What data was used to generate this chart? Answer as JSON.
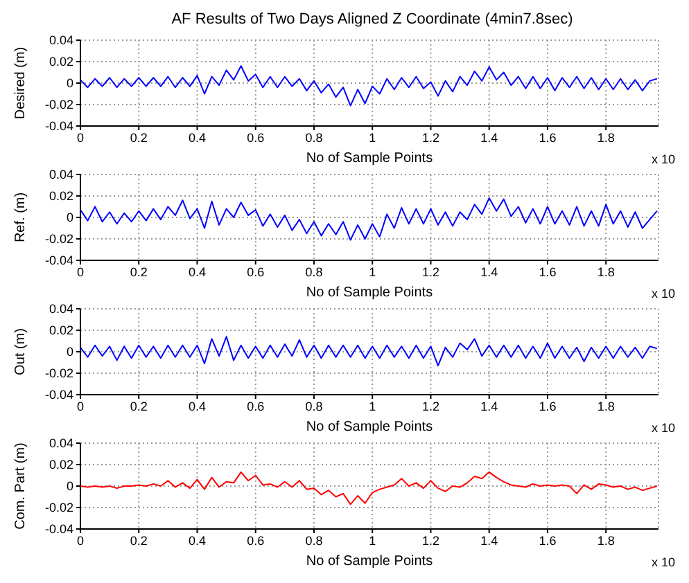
{
  "chart_data": [
    {
      "type": "line",
      "title": "AF Results of Two Days Aligned Z Coordinate (4min7.8sec)",
      "xlabel": "No of Sample Points",
      "ylabel": "Desired (m)",
      "annotations": [
        "x 10"
      ],
      "grid": true,
      "xlim": [
        0,
        1.98
      ],
      "xticks": [
        0,
        0.2,
        0.4,
        0.6,
        0.8,
        1,
        1.2,
        1.4,
        1.6,
        1.8
      ],
      "ylim": [
        -0.04,
        0.04
      ],
      "yticks": [
        -0.04,
        -0.02,
        0,
        0.02,
        0.04
      ],
      "x": [
        0,
        0.025,
        0.05,
        0.075,
        0.1,
        0.125,
        0.15,
        0.175,
        0.2,
        0.225,
        0.25,
        0.275,
        0.3,
        0.325,
        0.35,
        0.375,
        0.4,
        0.425,
        0.45,
        0.475,
        0.5,
        0.525,
        0.55,
        0.575,
        0.6,
        0.625,
        0.65,
        0.675,
        0.7,
        0.725,
        0.75,
        0.775,
        0.8,
        0.825,
        0.85,
        0.875,
        0.9,
        0.925,
        0.95,
        0.975,
        1,
        1.025,
        1.05,
        1.075,
        1.1,
        1.125,
        1.15,
        1.175,
        1.2,
        1.225,
        1.25,
        1.275,
        1.3,
        1.325,
        1.35,
        1.375,
        1.4,
        1.425,
        1.45,
        1.475,
        1.5,
        1.525,
        1.55,
        1.575,
        1.6,
        1.625,
        1.65,
        1.675,
        1.7,
        1.725,
        1.75,
        1.775,
        1.8,
        1.825,
        1.85,
        1.875,
        1.9,
        1.925,
        1.95,
        1.975
      ],
      "series": [
        {
          "color": "#0000ff",
          "values": [
            0.003,
            -0.004,
            0.004,
            -0.003,
            0.005,
            -0.004,
            0.004,
            -0.003,
            0.005,
            -0.003,
            0.005,
            -0.003,
            0.006,
            -0.004,
            0.005,
            -0.003,
            0.007,
            -0.01,
            0.006,
            -0.002,
            0.012,
            0.003,
            0.016,
            0.002,
            0.008,
            -0.004,
            0.006,
            -0.004,
            0.006,
            -0.003,
            0.004,
            -0.007,
            0.002,
            -0.009,
            -0.001,
            -0.013,
            -0.004,
            -0.021,
            -0.006,
            -0.019,
            -0.003,
            -0.01,
            0.004,
            -0.006,
            0.005,
            -0.004,
            0.006,
            -0.005,
            0.001,
            -0.012,
            0.002,
            -0.008,
            0.006,
            -0.002,
            0.011,
            0.002,
            0.015,
            0.003,
            0.01,
            -0.002,
            0.006,
            -0.005,
            0.006,
            -0.005,
            0.005,
            -0.007,
            0.005,
            -0.004,
            0.006,
            -0.005,
            0.005,
            -0.006,
            0.004,
            -0.006,
            0.004,
            -0.006,
            0.003,
            -0.007,
            0.002,
            0.004
          ]
        }
      ]
    },
    {
      "type": "line",
      "xlabel": "No of Sample Points",
      "ylabel": "Ref. (m)",
      "annotations": [
        "x 10"
      ],
      "grid": true,
      "xlim": [
        0,
        1.98
      ],
      "xticks": [
        0,
        0.2,
        0.4,
        0.6,
        0.8,
        1,
        1.2,
        1.4,
        1.6,
        1.8
      ],
      "ylim": [
        -0.04,
        0.04
      ],
      "yticks": [
        -0.04,
        -0.02,
        0,
        0.02,
        0.04
      ],
      "x": [
        0,
        0.025,
        0.05,
        0.075,
        0.1,
        0.125,
        0.15,
        0.175,
        0.2,
        0.225,
        0.25,
        0.275,
        0.3,
        0.325,
        0.35,
        0.375,
        0.4,
        0.425,
        0.45,
        0.475,
        0.5,
        0.525,
        0.55,
        0.575,
        0.6,
        0.625,
        0.65,
        0.675,
        0.7,
        0.725,
        0.75,
        0.775,
        0.8,
        0.825,
        0.85,
        0.875,
        0.9,
        0.925,
        0.95,
        0.975,
        1,
        1.025,
        1.05,
        1.075,
        1.1,
        1.125,
        1.15,
        1.175,
        1.2,
        1.225,
        1.25,
        1.275,
        1.3,
        1.325,
        1.35,
        1.375,
        1.4,
        1.425,
        1.45,
        1.475,
        1.5,
        1.525,
        1.55,
        1.575,
        1.6,
        1.625,
        1.65,
        1.675,
        1.7,
        1.725,
        1.75,
        1.775,
        1.8,
        1.825,
        1.85,
        1.875,
        1.9,
        1.925,
        1.95,
        1.975
      ],
      "series": [
        {
          "color": "#0000ff",
          "values": [
            0.007,
            -0.003,
            0.01,
            -0.004,
            0.005,
            -0.006,
            0.004,
            -0.004,
            0.006,
            -0.003,
            0.008,
            -0.002,
            0.01,
            0.002,
            0.016,
            -0.001,
            0.008,
            -0.01,
            0.015,
            -0.007,
            0.008,
            0,
            0.014,
            0.002,
            0.007,
            -0.008,
            0.003,
            -0.009,
            0.002,
            -0.012,
            -0.002,
            -0.015,
            -0.004,
            -0.017,
            -0.006,
            -0.016,
            -0.004,
            -0.021,
            -0.007,
            -0.02,
            -0.006,
            -0.018,
            0.003,
            -0.01,
            0.009,
            -0.006,
            0.008,
            -0.006,
            0.008,
            -0.007,
            0.005,
            -0.008,
            0.005,
            -0.002,
            0.012,
            0.003,
            0.018,
            0.006,
            0.017,
            0.001,
            0.01,
            -0.005,
            0.008,
            -0.006,
            0.01,
            -0.006,
            0.006,
            -0.007,
            0.01,
            -0.008,
            0.006,
            -0.008,
            0.012,
            -0.006,
            0.006,
            -0.009,
            0.005,
            -0.01,
            -0.002,
            0.006
          ]
        }
      ]
    },
    {
      "type": "line",
      "xlabel": "No of Sample Points",
      "ylabel": "Out (m)",
      "annotations": [
        "x 10"
      ],
      "grid": true,
      "xlim": [
        0,
        1.98
      ],
      "xticks": [
        0,
        0.2,
        0.4,
        0.6,
        0.8,
        1,
        1.2,
        1.4,
        1.6,
        1.8
      ],
      "ylim": [
        -0.04,
        0.04
      ],
      "yticks": [
        -0.04,
        -0.02,
        0,
        0.02,
        0.04
      ],
      "x": [
        0,
        0.025,
        0.05,
        0.075,
        0.1,
        0.125,
        0.15,
        0.175,
        0.2,
        0.225,
        0.25,
        0.275,
        0.3,
        0.325,
        0.35,
        0.375,
        0.4,
        0.425,
        0.45,
        0.475,
        0.5,
        0.525,
        0.55,
        0.575,
        0.6,
        0.625,
        0.65,
        0.675,
        0.7,
        0.725,
        0.75,
        0.775,
        0.8,
        0.825,
        0.85,
        0.875,
        0.9,
        0.925,
        0.95,
        0.975,
        1,
        1.025,
        1.05,
        1.075,
        1.1,
        1.125,
        1.15,
        1.175,
        1.2,
        1.225,
        1.25,
        1.275,
        1.3,
        1.325,
        1.35,
        1.375,
        1.4,
        1.425,
        1.45,
        1.475,
        1.5,
        1.525,
        1.55,
        1.575,
        1.6,
        1.625,
        1.65,
        1.675,
        1.7,
        1.725,
        1.75,
        1.775,
        1.8,
        1.825,
        1.85,
        1.875,
        1.9,
        1.925,
        1.95,
        1.975
      ],
      "series": [
        {
          "color": "#0000ff",
          "values": [
            0.004,
            -0.005,
            0.006,
            -0.004,
            0.005,
            -0.008,
            0.005,
            -0.006,
            0.006,
            -0.005,
            0.005,
            -0.006,
            0.006,
            -0.005,
            0.006,
            -0.005,
            0.006,
            -0.011,
            0.012,
            -0.004,
            0.014,
            -0.008,
            0.006,
            -0.006,
            0.005,
            -0.006,
            0.006,
            -0.005,
            0.007,
            -0.004,
            0.011,
            -0.005,
            0.006,
            -0.006,
            0.006,
            -0.005,
            0.006,
            -0.005,
            0.006,
            -0.006,
            0.005,
            -0.006,
            0.006,
            -0.005,
            0.005,
            -0.006,
            0.006,
            -0.006,
            0.005,
            -0.013,
            0.004,
            -0.005,
            0.008,
            0.002,
            0.012,
            -0.004,
            0.006,
            -0.005,
            0.006,
            -0.005,
            0.006,
            -0.006,
            0.005,
            -0.006,
            0.008,
            -0.006,
            0.005,
            -0.006,
            0.004,
            -0.009,
            0.004,
            -0.006,
            0.005,
            -0.006,
            0.005,
            -0.005,
            0.004,
            -0.006,
            0.005,
            0.003
          ]
        }
      ]
    },
    {
      "type": "line",
      "xlabel": "No of Sample Points",
      "ylabel": "Com. Part (m)",
      "annotations": [
        "x 10"
      ],
      "grid": true,
      "xlim": [
        0,
        1.98
      ],
      "xticks": [
        0,
        0.2,
        0.4,
        0.6,
        0.8,
        1,
        1.2,
        1.4,
        1.6,
        1.8
      ],
      "ylim": [
        -0.04,
        0.04
      ],
      "yticks": [
        -0.04,
        -0.02,
        0,
        0.02,
        0.04
      ],
      "x": [
        0,
        0.025,
        0.05,
        0.075,
        0.1,
        0.125,
        0.15,
        0.175,
        0.2,
        0.225,
        0.25,
        0.275,
        0.3,
        0.325,
        0.35,
        0.375,
        0.4,
        0.425,
        0.45,
        0.475,
        0.5,
        0.525,
        0.55,
        0.575,
        0.6,
        0.625,
        0.65,
        0.675,
        0.7,
        0.725,
        0.75,
        0.775,
        0.8,
        0.825,
        0.85,
        0.875,
        0.9,
        0.925,
        0.95,
        0.975,
        1,
        1.025,
        1.05,
        1.075,
        1.1,
        1.125,
        1.15,
        1.175,
        1.2,
        1.225,
        1.25,
        1.275,
        1.3,
        1.325,
        1.35,
        1.375,
        1.4,
        1.425,
        1.45,
        1.475,
        1.5,
        1.525,
        1.55,
        1.575,
        1.6,
        1.625,
        1.65,
        1.675,
        1.7,
        1.725,
        1.75,
        1.775,
        1.8,
        1.825,
        1.85,
        1.875,
        1.9,
        1.925,
        1.95,
        1.975
      ],
      "series": [
        {
          "color": "#ff0000",
          "values": [
            0,
            -0.001,
            0,
            -0.001,
            0,
            -0.002,
            0,
            0,
            0.001,
            0,
            0.002,
            0,
            0.005,
            -0.001,
            0.003,
            -0.002,
            0.006,
            -0.003,
            0.008,
            -0.001,
            0.004,
            0.003,
            0.013,
            0.005,
            0.01,
            0.001,
            0.002,
            -0.001,
            0.004,
            -0.001,
            0.005,
            -0.003,
            -0.002,
            -0.008,
            -0.004,
            -0.01,
            -0.007,
            -0.017,
            -0.009,
            -0.016,
            -0.006,
            -0.003,
            -0.001,
            0.001,
            0.007,
            0,
            0.003,
            -0.002,
            0.005,
            -0.002,
            -0.005,
            0,
            -0.001,
            0.003,
            0.009,
            0.007,
            0.013,
            0.008,
            0.004,
            0.001,
            0,
            -0.001,
            0.002,
            0,
            0.001,
            0,
            0.001,
            0,
            -0.007,
            0.001,
            -0.003,
            0.002,
            0.001,
            -0.001,
            0,
            -0.003,
            -0.001,
            -0.004,
            -0.002,
            0
          ]
        }
      ]
    }
  ]
}
